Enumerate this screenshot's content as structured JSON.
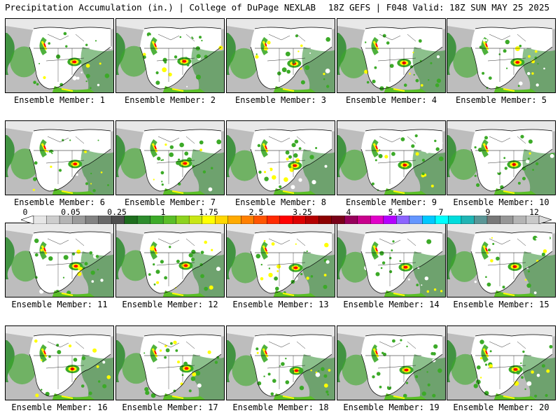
{
  "header": {
    "title": "Precipitation Accumulation (in.) | College of DuPage NEXLAB",
    "run_info": "18Z GEFS | F048 Valid: 18Z SUN MAY 25 2025"
  },
  "colorbar": {
    "tick_labels": [
      "0",
      "0.05",
      "0.25",
      "1",
      "1.75",
      "2.5",
      "3.25",
      "4",
      "5.5",
      "7",
      "9",
      "12"
    ],
    "colors": [
      "#ffffff",
      "#e6e6e6",
      "#cdcdcd",
      "#b4b4b4",
      "#9b9b9b",
      "#828282",
      "#696969",
      "#4f4f4f",
      "#1e6e1e",
      "#2d8c2d",
      "#3caa28",
      "#5abe28",
      "#8cd21e",
      "#c8e614",
      "#ffff00",
      "#ffd700",
      "#ffaa00",
      "#ff7f00",
      "#ff5500",
      "#ff2a00",
      "#ff0000",
      "#dc0000",
      "#b40000",
      "#8c0000",
      "#780018",
      "#96005a",
      "#c8008c",
      "#e100c8",
      "#b400ff",
      "#8c64ff",
      "#6496ff",
      "#00c8ff",
      "#00ffff",
      "#00dcdc",
      "#20b4b4",
      "#5a9696",
      "#787878",
      "#969696",
      "#b4b4b4",
      "#c8c8c8",
      "#dcdcdc"
    ]
  },
  "panels": [
    {
      "label": "Ensemble Member: 1"
    },
    {
      "label": "Ensemble Member: 2"
    },
    {
      "label": "Ensemble Member: 3"
    },
    {
      "label": "Ensemble Member: 4"
    },
    {
      "label": "Ensemble Member: 5"
    },
    {
      "label": "Ensemble Member: 6"
    },
    {
      "label": "Ensemble Member: 7"
    },
    {
      "label": "Ensemble Member: 8"
    },
    {
      "label": "Ensemble Member: 9"
    },
    {
      "label": "Ensemble Member: 10"
    },
    {
      "label": "Ensemble Member: 11"
    },
    {
      "label": "Ensemble Member: 12"
    },
    {
      "label": "Ensemble Member: 13"
    },
    {
      "label": "Ensemble Member: 14"
    },
    {
      "label": "Ensemble Member: 15"
    },
    {
      "label": "Ensemble Member: 16"
    },
    {
      "label": "Ensemble Member: 17"
    },
    {
      "label": "Ensemble Member: 18"
    },
    {
      "label": "Ensemble Member: 19"
    },
    {
      "label": "Ensemble Member: 20"
    }
  ]
}
